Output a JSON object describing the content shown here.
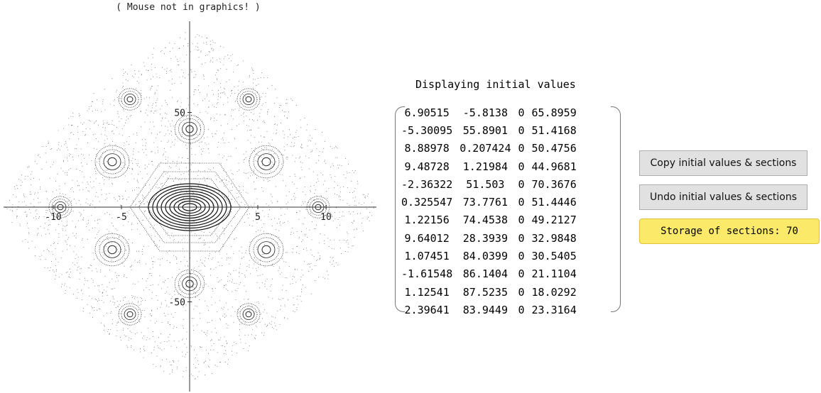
{
  "status": "( Mouse not in graphics! )",
  "plot": {
    "xticks": [
      -10,
      -5,
      5,
      10
    ],
    "yticks": [
      50,
      -50
    ]
  },
  "table": {
    "title": "Displaying initial values",
    "rows": [
      [
        "6.90515",
        "-5.8138",
        "0",
        "65.8959"
      ],
      [
        "-5.30095",
        "55.8901",
        "0",
        "51.4168"
      ],
      [
        "8.88978",
        "0.207424",
        "0",
        "50.4756"
      ],
      [
        "9.48728",
        "1.21984",
        "0",
        "44.9681"
      ],
      [
        "-2.36322",
        "51.503",
        "0",
        "70.3676"
      ],
      [
        "0.325547",
        "73.7761",
        "0",
        "51.4446"
      ],
      [
        "1.22156",
        "74.4538",
        "0",
        "49.2127"
      ],
      [
        "9.64012",
        "28.3939",
        "0",
        "32.9848"
      ],
      [
        "1.07451",
        "84.0399",
        "0",
        "30.5405"
      ],
      [
        "-1.61548",
        "86.1404",
        "0",
        "21.1104"
      ],
      [
        "1.12541",
        "87.5235",
        "0",
        "18.0292"
      ],
      [
        "2.39641",
        "83.9449",
        "0",
        "23.3164"
      ]
    ]
  },
  "buttons": [
    "Copy initial values & sections",
    "Undo initial values & sections"
  ],
  "storage": "Storage of sections: 70"
}
